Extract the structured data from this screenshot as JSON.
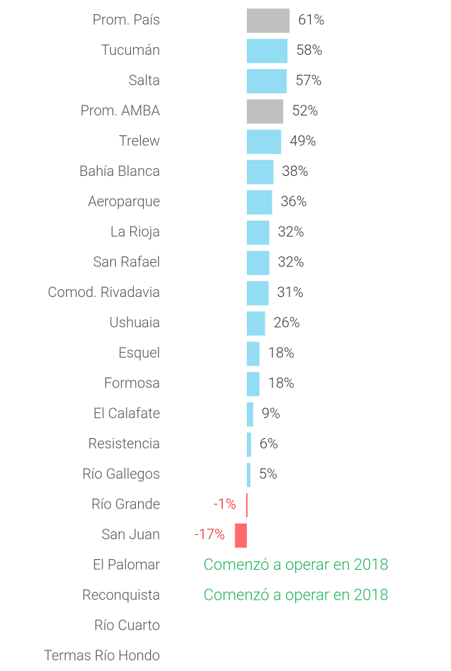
{
  "chart_data": {
    "type": "bar",
    "orientation": "horizontal",
    "categories": [
      "Prom. País",
      "Tucumán",
      "Salta",
      "Prom. AMBA",
      "Trelew",
      "Bahía Blanca",
      "Aeroparque",
      "La Rioja",
      "San Rafael",
      "Comod. Rivadavia",
      "Ushuaia",
      "Esquel",
      "Formosa",
      "El Calafate",
      "Resistencia",
      "Río Gallegos",
      "Río Grande",
      "San Juan",
      "El Palomar",
      "Reconquista",
      "Río Cuarto",
      "Termas Río Hondo"
    ],
    "values": [
      61,
      58,
      57,
      52,
      49,
      38,
      36,
      32,
      32,
      31,
      26,
      18,
      18,
      9,
      6,
      5,
      -1,
      -17,
      null,
      null,
      null,
      null
    ],
    "value_labels": [
      "61%",
      "58%",
      "57%",
      "52%",
      "49%",
      "38%",
      "36%",
      "32%",
      "32%",
      "31%",
      "26%",
      "18%",
      "18%",
      "9%",
      "6%",
      "5%",
      "-1%",
      "-17%",
      "Comenzó a operar en 2018",
      "Comenzó a operar en 2018",
      null,
      null
    ],
    "colors": [
      "#c0c0c0",
      "#92dcf4",
      "#92dcf4",
      "#c0c0c0",
      "#92dcf4",
      "#92dcf4",
      "#92dcf4",
      "#92dcf4",
      "#92dcf4",
      "#92dcf4",
      "#92dcf4",
      "#92dcf4",
      "#92dcf4",
      "#92dcf4",
      "#92dcf4",
      "#92dcf4",
      "#ff6b6b",
      "#ff6b6b",
      null,
      null,
      null,
      null
    ],
    "negative_label_color": "#e8141a",
    "note_color": "#1fb25a"
  }
}
